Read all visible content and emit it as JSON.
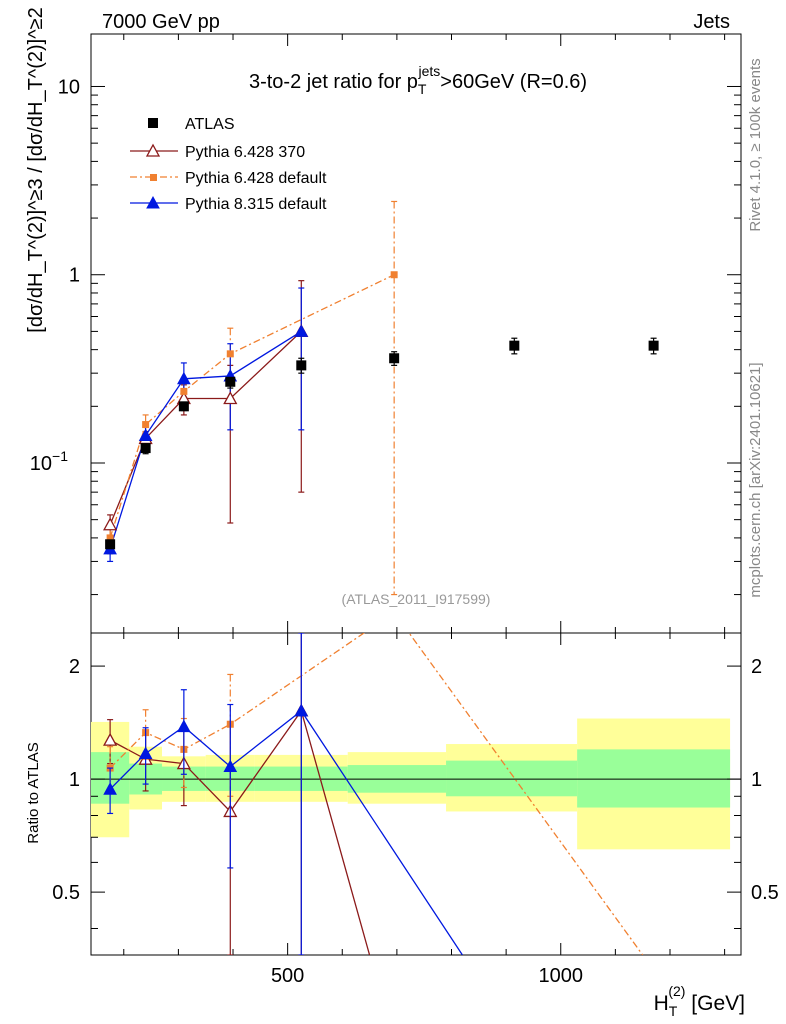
{
  "header": {
    "left": "7000 GeV pp",
    "right": "Jets"
  },
  "side_labels": {
    "rivet": "Rivet 4.1.0, ≥ 100k events",
    "mcplots": "mcplots.cern.ch [arXiv:2401.10621]"
  },
  "chart_data": {
    "type": "scatter",
    "title": "3-to-2 jet ratio for p_T^jets>60GeV (R=0.6)",
    "title_parts": {
      "main": "3-to-2 jet ratio for p",
      "sub": "T",
      "sup": "jets",
      "rest": ">60GeV (R=0.6)"
    },
    "analysis_tag": "(ATLAS_2011_I917599)",
    "xlabel": "H_T^(2) [GeV]",
    "xlabel_parts": {
      "main": "H",
      "sub": "T",
      "sup": "(2)",
      "rest": " [GeV]"
    },
    "ylabel": "[dσ/dH_T^(2)]^≥3 / [dσ/dH_T^(2)]^≥2",
    "ylabel_ratio": "Ratio to ATLAS",
    "xlim": [
      140,
      1330
    ],
    "ylim_main": [
      0.0125,
      19
    ],
    "ylim_ratio": [
      0.34,
      2.45
    ],
    "x_ticks": [
      {
        "value": 500,
        "label": "500"
      },
      {
        "value": 1000,
        "label": "1000"
      }
    ],
    "y_ticks_main": [
      {
        "value": 0.1,
        "label": "10",
        "sup": "−1"
      },
      {
        "value": 1,
        "label": "1",
        "sup": ""
      },
      {
        "value": 10,
        "label": "10",
        "sup": ""
      }
    ],
    "y_ticks_ratio": [
      {
        "value": 0.5,
        "label": "0.5"
      },
      {
        "value": 1,
        "label": "1"
      },
      {
        "value": 2,
        "label": "2"
      }
    ],
    "legend": [
      {
        "name": "ATLAS",
        "color": "#000000",
        "marker": "square",
        "line": "none"
      },
      {
        "name": "Pythia 6.428 370",
        "color": "#8b1a1a",
        "marker": "open-triangle",
        "line": "solid"
      },
      {
        "name": "Pythia 6.428 default",
        "color": "#f08030",
        "marker": "small-square",
        "line": "dashdot"
      },
      {
        "name": "Pythia 8.315 default",
        "color": "#0018e0",
        "marker": "triangle",
        "line": "solid"
      }
    ],
    "data": {
      "name": "ATLAS",
      "x": [
        175,
        240,
        310,
        395,
        525,
        695,
        915,
        1170
      ],
      "xlo": [
        140,
        210,
        270,
        350,
        440,
        610,
        790,
        1030
      ],
      "xhi": [
        210,
        270,
        350,
        440,
        610,
        790,
        1030,
        1310
      ],
      "values": [
        0.037,
        0.12,
        0.2,
        0.27,
        0.33,
        0.36,
        0.42,
        0.42
      ],
      "err": [
        0.004,
        0.008,
        0.01,
        0.02,
        0.03,
        0.03,
        0.04,
        0.04
      ]
    },
    "bands": {
      "inner": [
        {
          "xlo": 140,
          "xhi": 210,
          "lo": 0.86,
          "hi": 1.18
        },
        {
          "xlo": 210,
          "xhi": 270,
          "lo": 0.91,
          "hi": 1.1
        },
        {
          "xlo": 270,
          "xhi": 350,
          "lo": 0.93,
          "hi": 1.08
        },
        {
          "xlo": 350,
          "xhi": 440,
          "lo": 0.93,
          "hi": 1.08
        },
        {
          "xlo": 440,
          "xhi": 610,
          "lo": 0.93,
          "hi": 1.08
        },
        {
          "xlo": 610,
          "xhi": 790,
          "lo": 0.92,
          "hi": 1.09
        },
        {
          "xlo": 790,
          "xhi": 1030,
          "lo": 0.9,
          "hi": 1.12
        },
        {
          "xlo": 1030,
          "xhi": 1310,
          "lo": 0.84,
          "hi": 1.2
        }
      ],
      "outer": [
        {
          "xlo": 140,
          "xhi": 210,
          "lo": 0.7,
          "hi": 1.42
        },
        {
          "xlo": 210,
          "xhi": 270,
          "lo": 0.83,
          "hi": 1.22
        },
        {
          "xlo": 270,
          "xhi": 350,
          "lo": 0.87,
          "hi": 1.15
        },
        {
          "xlo": 350,
          "xhi": 440,
          "lo": 0.87,
          "hi": 1.16
        },
        {
          "xlo": 440,
          "xhi": 610,
          "lo": 0.87,
          "hi": 1.16
        },
        {
          "xlo": 610,
          "xhi": 790,
          "lo": 0.86,
          "hi": 1.18
        },
        {
          "xlo": 790,
          "xhi": 1030,
          "lo": 0.82,
          "hi": 1.24
        },
        {
          "xlo": 1030,
          "xhi": 1310,
          "lo": 0.65,
          "hi": 1.45
        }
      ]
    },
    "series": [
      {
        "name": "Pythia 6.428 370",
        "color": "#8b1a1a",
        "dash": "",
        "marker": "open-triangle",
        "x": [
          175,
          240,
          310,
          395,
          525
        ],
        "values": [
          0.047,
          0.135,
          0.22,
          0.22,
          0.5
        ],
        "err_lo": [
          0.006,
          0.012,
          0.04,
          0.172,
          0.43
        ],
        "err_hi": [
          0.006,
          0.012,
          0.04,
          0.11,
          0.43
        ],
        "ratio": [
          1.27,
          1.13,
          1.1,
          0.82,
          1.52
        ],
        "ratio_err_lo": [
          0.17,
          0.2,
          0.25,
          0.6,
          1.3
        ],
        "ratio_err_hi": [
          0.17,
          0.2,
          0.25,
          0.6,
          1.3
        ],
        "ratio_tail": {
          "x": [
            525,
            650
          ],
          "values": [
            1.52,
            0.34
          ]
        }
      },
      {
        "name": "Pythia 6.428 default",
        "color": "#f08030",
        "dash": "7,3,2,3",
        "marker": "small-square",
        "x": [
          175,
          240,
          310,
          395,
          695
        ],
        "values": [
          0.04,
          0.16,
          0.24,
          0.38,
          1.0
        ],
        "err_lo": [
          0.005,
          0.02,
          0.03,
          0.12,
          0.98
        ],
        "err_hi": [
          0.005,
          0.02,
          0.03,
          0.14,
          1.45
        ],
        "ratio": [
          1.07,
          1.33,
          1.2,
          1.4,
          2.78
        ],
        "ratio_err_lo": [
          0.15,
          0.2,
          0.25,
          0.5,
          0
        ],
        "ratio_err_hi": [
          0.15,
          0.2,
          0.25,
          0.5,
          0
        ],
        "ratio_tail": {
          "x": [
            695,
            1150
          ],
          "values": [
            2.78,
            0.34
          ]
        }
      },
      {
        "name": "Pythia 8.315 default",
        "color": "#0018e0",
        "dash": "",
        "marker": "triangle",
        "x": [
          175,
          240,
          310,
          395,
          525
        ],
        "values": [
          0.035,
          0.14,
          0.28,
          0.29,
          0.5
        ],
        "err_lo": [
          0.005,
          0.015,
          0.06,
          0.14,
          0.35
        ],
        "err_hi": [
          0.005,
          0.015,
          0.06,
          0.14,
          0.35
        ],
        "ratio": [
          0.94,
          1.17,
          1.38,
          1.08,
          1.52
        ],
        "ratio_err_lo": [
          0.13,
          0.2,
          0.35,
          0.5,
          1.2
        ],
        "ratio_err_hi": [
          0.13,
          0.2,
          0.35,
          0.5,
          1.2
        ],
        "ratio_tail": {
          "x": [
            525,
            820
          ],
          "values": [
            1.52,
            0.34
          ]
        }
      }
    ]
  }
}
